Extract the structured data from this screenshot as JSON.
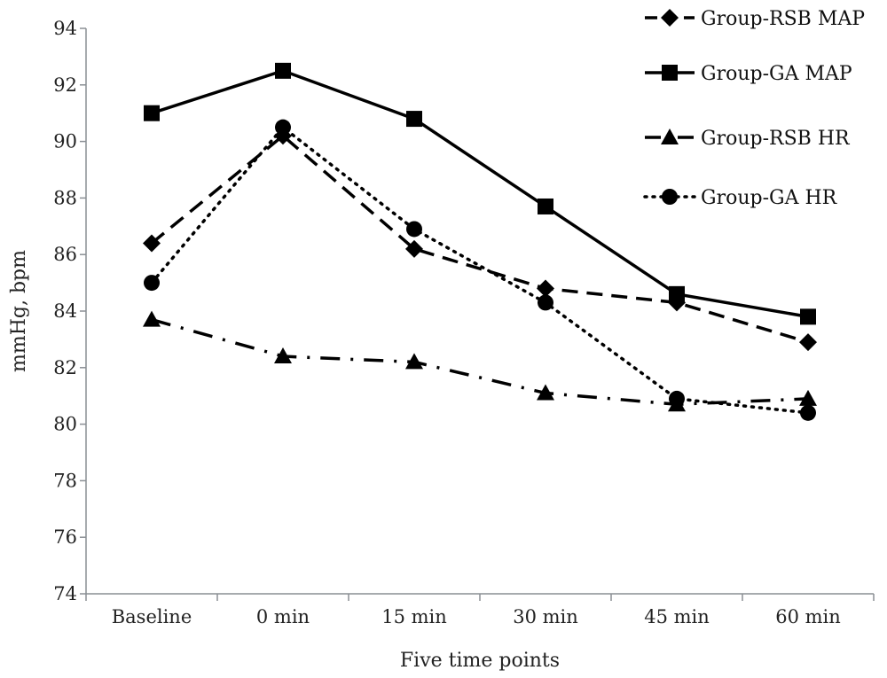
{
  "chart_data": {
    "type": "line",
    "title": "",
    "xlabel": "Five time points",
    "ylabel": "mmHg, bpm",
    "ylim": [
      74,
      94
    ],
    "yticks": [
      "74",
      "76",
      "78",
      "80",
      "82",
      "84",
      "86",
      "88",
      "90",
      "92",
      "94"
    ],
    "categories": [
      "Baseline",
      "0 min",
      "15 min",
      "30 min",
      "45 min",
      "60 min"
    ],
    "legend_position": "top-right",
    "grid": false,
    "series": [
      {
        "name": "Group-RSB MAP",
        "marker": "diamond",
        "dash": "dashed",
        "values": [
          86.4,
          90.2,
          86.2,
          84.8,
          84.3,
          82.9
        ]
      },
      {
        "name": "Group-GA MAP",
        "marker": "square",
        "dash": "solid",
        "values": [
          91.0,
          92.5,
          90.8,
          87.7,
          84.6,
          83.8
        ]
      },
      {
        "name": "Group-RSB HR",
        "marker": "triangle",
        "dash": "dash-dot",
        "values": [
          83.7,
          82.4,
          82.2,
          81.1,
          80.7,
          80.9
        ]
      },
      {
        "name": "Group-GA HR",
        "marker": "circle",
        "dash": "dotted",
        "values": [
          85.0,
          90.5,
          86.9,
          84.3,
          80.9,
          80.4
        ]
      }
    ],
    "colors": {
      "line": "#000000",
      "axis": "#8a8f94"
    }
  }
}
